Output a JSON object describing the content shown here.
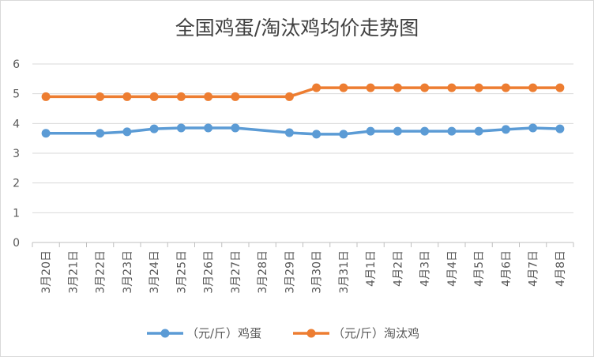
{
  "chart_data": {
    "type": "line",
    "title": "全国鸡蛋/淘汰鸡均价走势图",
    "categories": [
      "3月20日",
      "3月21日",
      "3月22日",
      "3月23日",
      "3月24日",
      "3月25日",
      "3月26日",
      "3月27日",
      "3月28日",
      "3月29日",
      "3月30日",
      "3月31日",
      "4月1日",
      "4月2日",
      "4月3日",
      "4月4日",
      "4月5日",
      "4月6日",
      "4月7日",
      "4月8日"
    ],
    "series": [
      {
        "name": "（元/斤）鸡蛋",
        "color": "#5b9bd5",
        "values": [
          3.67,
          null,
          3.67,
          3.72,
          3.82,
          3.85,
          3.85,
          3.85,
          null,
          3.69,
          3.64,
          3.64,
          3.74,
          3.74,
          3.74,
          3.74,
          3.74,
          3.8,
          3.85,
          3.82
        ]
      },
      {
        "name": "（元/斤）淘汰鸡",
        "color": "#ed7d31",
        "values": [
          4.9,
          null,
          4.9,
          4.9,
          4.9,
          4.9,
          4.9,
          4.9,
          null,
          4.9,
          5.2,
          5.2,
          5.2,
          5.2,
          5.2,
          5.2,
          5.2,
          5.2,
          5.2,
          5.2
        ]
      }
    ],
    "ylim": [
      0,
      6
    ],
    "yticks": [
      "0",
      "1",
      "2",
      "3",
      "4",
      "5",
      "6"
    ],
    "grid": true,
    "legend": "bottom"
  }
}
